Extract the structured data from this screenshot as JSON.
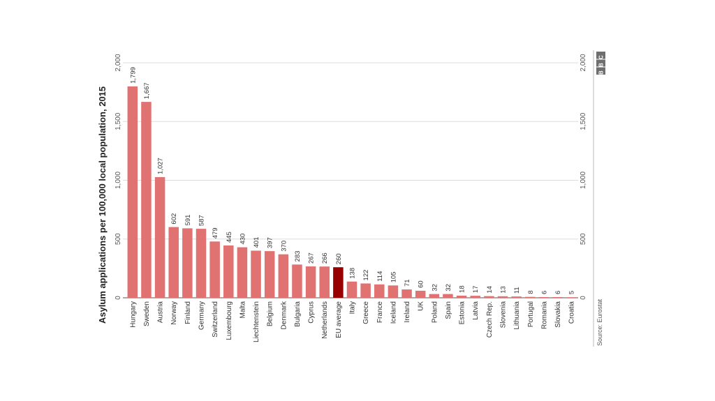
{
  "chart_data": {
    "type": "bar",
    "title": "",
    "ylabel": "Asylum applications per 100,000 local population, 2015",
    "xlabel": "",
    "ylim": [
      0,
      2000
    ],
    "yticks": [
      0,
      500,
      1000,
      1500,
      2000
    ],
    "ytick_labels": [
      "0",
      "500",
      "1,000",
      "1,500",
      "2,000"
    ],
    "grid": true,
    "categories": [
      "Hungary",
      "Sweden",
      "Austria",
      "Norway",
      "Finland",
      "Germany",
      "Switzerland",
      "Luxembourg",
      "Malta",
      "Liechtenstein",
      "Belgium",
      "Denmark",
      "Bulgaria",
      "Cyprus",
      "Netherlands",
      "EU average",
      "Italy",
      "Greece",
      "France",
      "Iceland",
      "Ireland",
      "UK",
      "Poland",
      "Spain",
      "Estonia",
      "Latvia",
      "Czech Rep.",
      "Slovenia",
      "Lithuania",
      "Portugal",
      "Romania",
      "Slovakia",
      "Croatia"
    ],
    "values": [
      1799,
      1667,
      1027,
      602,
      591,
      587,
      479,
      445,
      430,
      401,
      397,
      370,
      283,
      267,
      266,
      260,
      138,
      122,
      114,
      105,
      71,
      60,
      32,
      32,
      18,
      17,
      14,
      13,
      11,
      8,
      6,
      6,
      5
    ],
    "value_labels": [
      "1,799",
      "1,667",
      "1,027",
      "602",
      "591",
      "587",
      "479",
      "445",
      "430",
      "401",
      "397",
      "370",
      "283",
      "267",
      "266",
      "260",
      "138",
      "122",
      "114",
      "105",
      "71",
      "60",
      "32",
      "32",
      "18",
      "17",
      "14",
      "13",
      "11",
      "8",
      "6",
      "6",
      "5"
    ],
    "highlight_category": "EU average",
    "colors": {
      "bar": "#e07272",
      "highlight": "#990000",
      "grid": "#dddddd"
    },
    "source": "Source: Eurostat",
    "logo": "BBC"
  }
}
